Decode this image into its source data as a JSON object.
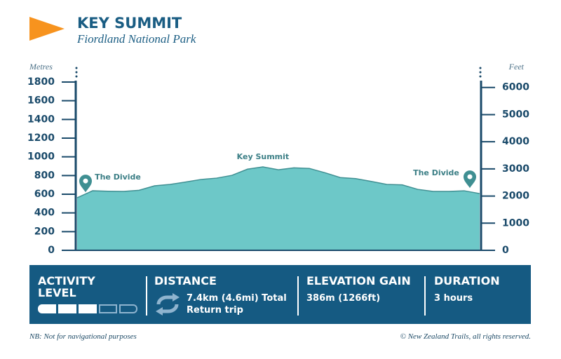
{
  "header": {
    "title": "KEY SUMMIT",
    "subtitle": "Fiordland National Park"
  },
  "chart_data": {
    "type": "area",
    "color": "#6dc8c8",
    "line_color": "#3f8f92",
    "ylabel": "Metres",
    "y2label": "Feet",
    "values": [
      562,
      637,
      632,
      630,
      642,
      690,
      705,
      730,
      758,
      772,
      802,
      868,
      892,
      862,
      882,
      876,
      830,
      778,
      767,
      737,
      705,
      700,
      652,
      630,
      630,
      637,
      607
    ],
    "ylim": [
      0,
      1800
    ],
    "yticks": [
      0,
      200,
      400,
      600,
      800,
      1000,
      1200,
      1400,
      1600,
      1800
    ],
    "y2lim": [
      0,
      6200
    ],
    "y2ticks": [
      0,
      1000,
      2000,
      3000,
      4000,
      5000,
      6000
    ],
    "annotations": {
      "start": "The Divide",
      "peak": "Key Summit",
      "end": "The Divide"
    }
  },
  "info": {
    "activity": {
      "label": "ACTIVITY LEVEL",
      "level": 3,
      "max": 5
    },
    "distance": {
      "label": "DISTANCE",
      "text": "7.4km (4.6mi) Total Return trip"
    },
    "elevation": {
      "label": "ELEVATION GAIN",
      "text": "386m (1266ft)"
    },
    "duration": {
      "label": "DURATION",
      "text": "3 hours"
    }
  },
  "footer": {
    "note": "NB: Not for navigational purposes",
    "copyright": "© New Zealand Trails, all rights reserved."
  }
}
